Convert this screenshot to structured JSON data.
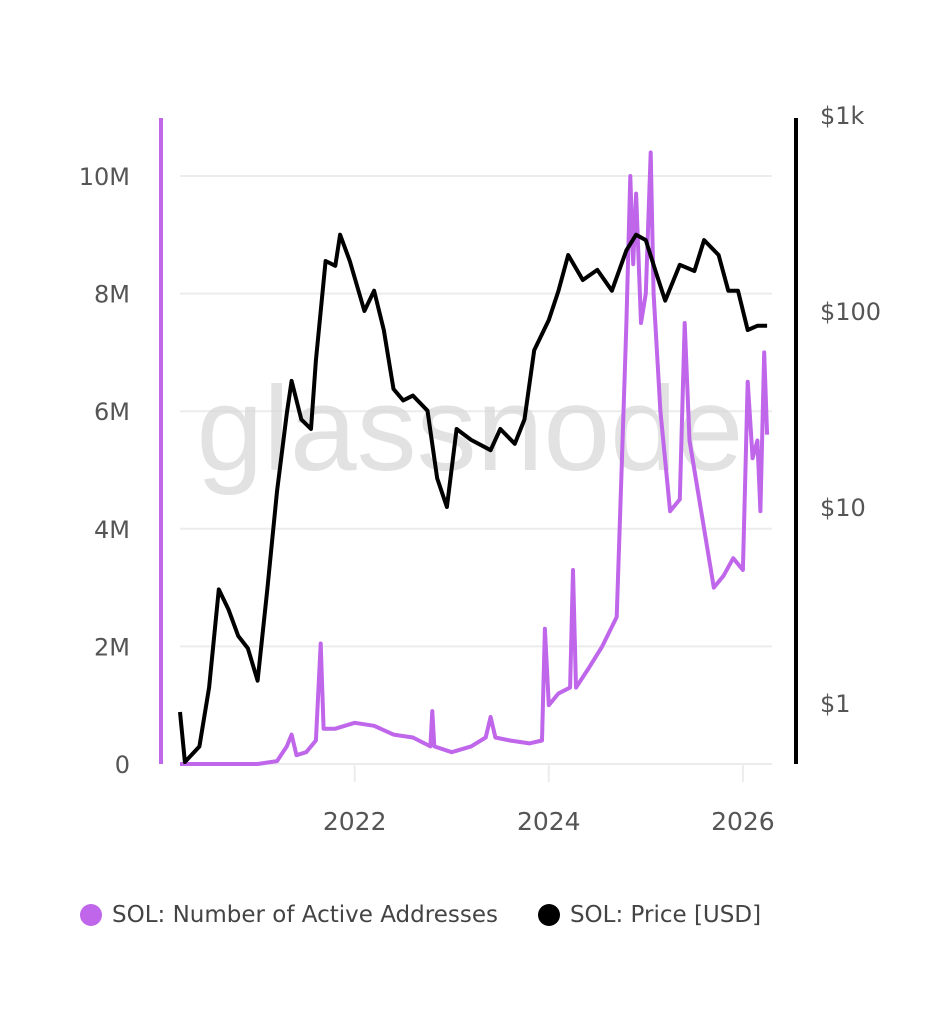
{
  "watermark": "glassnode",
  "colors": {
    "active_addresses": "#bf66ea",
    "price": "#000000",
    "grid": "#ececec",
    "tick_text": "#555555"
  },
  "chart_data": {
    "type": "line",
    "title": "",
    "x_axis": {
      "type": "time",
      "ticks": [
        "2022",
        "2024",
        "2026"
      ],
      "range": [
        2020.2,
        2026.3
      ]
    },
    "y_left": {
      "scale": "linear",
      "range": [
        0,
        11000000
      ],
      "ticks": [
        "0",
        "2M",
        "4M",
        "6M",
        "8M",
        "10M"
      ],
      "tick_values": [
        0,
        2000000,
        4000000,
        6000000,
        8000000,
        10000000
      ]
    },
    "y_right": {
      "scale": "log",
      "range": [
        0.5,
        1000
      ],
      "ticks": [
        "$1",
        "$10",
        "$100",
        "$1k"
      ],
      "tick_values": [
        1,
        10,
        100,
        1000
      ]
    },
    "grid": true,
    "legend_position": "bottom",
    "series": [
      {
        "name": "SOL: Number of Active Addresses",
        "axis": "left",
        "color": "#bf66ea",
        "points": [
          [
            2020.2,
            0
          ],
          [
            2020.6,
            0
          ],
          [
            2021.0,
            0
          ],
          [
            2021.2,
            50000
          ],
          [
            2021.3,
            300000
          ],
          [
            2021.35,
            500000
          ],
          [
            2021.4,
            150000
          ],
          [
            2021.5,
            200000
          ],
          [
            2021.6,
            400000
          ],
          [
            2021.65,
            2050000
          ],
          [
            2021.68,
            600000
          ],
          [
            2021.8,
            600000
          ],
          [
            2022.0,
            700000
          ],
          [
            2022.2,
            650000
          ],
          [
            2022.4,
            500000
          ],
          [
            2022.6,
            450000
          ],
          [
            2022.78,
            300000
          ],
          [
            2022.8,
            900000
          ],
          [
            2022.82,
            300000
          ],
          [
            2023.0,
            200000
          ],
          [
            2023.2,
            300000
          ],
          [
            2023.35,
            450000
          ],
          [
            2023.4,
            800000
          ],
          [
            2023.45,
            450000
          ],
          [
            2023.6,
            400000
          ],
          [
            2023.8,
            350000
          ],
          [
            2023.93,
            400000
          ],
          [
            2023.96,
            2300000
          ],
          [
            2024.0,
            1000000
          ],
          [
            2024.1,
            1200000
          ],
          [
            2024.22,
            1300000
          ],
          [
            2024.25,
            3300000
          ],
          [
            2024.28,
            1300000
          ],
          [
            2024.4,
            1600000
          ],
          [
            2024.55,
            2000000
          ],
          [
            2024.7,
            2500000
          ],
          [
            2024.75,
            5000000
          ],
          [
            2024.8,
            7500000
          ],
          [
            2024.84,
            10000000
          ],
          [
            2024.87,
            8500000
          ],
          [
            2024.9,
            9700000
          ],
          [
            2024.95,
            7500000
          ],
          [
            2025.0,
            8000000
          ],
          [
            2025.05,
            10400000
          ],
          [
            2025.08,
            8000000
          ],
          [
            2025.15,
            6000000
          ],
          [
            2025.25,
            4300000
          ],
          [
            2025.35,
            4500000
          ],
          [
            2025.4,
            7500000
          ],
          [
            2025.45,
            5500000
          ],
          [
            2025.5,
            5000000
          ],
          [
            2025.6,
            4000000
          ],
          [
            2025.7,
            3000000
          ],
          [
            2025.8,
            3200000
          ],
          [
            2025.9,
            3500000
          ],
          [
            2026.0,
            3300000
          ],
          [
            2026.05,
            6500000
          ],
          [
            2026.1,
            5200000
          ],
          [
            2026.15,
            5500000
          ],
          [
            2026.18,
            4300000
          ],
          [
            2026.22,
            7000000
          ],
          [
            2026.25,
            5600000
          ]
        ]
      },
      {
        "name": "SOL: Price [USD]",
        "axis": "right",
        "color": "#000000",
        "points": [
          [
            2020.2,
            0.9
          ],
          [
            2020.25,
            0.5
          ],
          [
            2020.4,
            0.6
          ],
          [
            2020.5,
            1.2
          ],
          [
            2020.6,
            3.8
          ],
          [
            2020.7,
            3.0
          ],
          [
            2020.8,
            2.2
          ],
          [
            2020.9,
            1.9
          ],
          [
            2021.0,
            1.3
          ],
          [
            2021.1,
            3.8
          ],
          [
            2021.2,
            12
          ],
          [
            2021.3,
            30
          ],
          [
            2021.35,
            44
          ],
          [
            2021.45,
            28
          ],
          [
            2021.55,
            25
          ],
          [
            2021.6,
            56
          ],
          [
            2021.7,
            180
          ],
          [
            2021.8,
            170
          ],
          [
            2021.85,
            245
          ],
          [
            2021.95,
            180
          ],
          [
            2022.1,
            100
          ],
          [
            2022.2,
            127
          ],
          [
            2022.3,
            80
          ],
          [
            2022.4,
            40
          ],
          [
            2022.5,
            35
          ],
          [
            2022.6,
            37
          ],
          [
            2022.75,
            31
          ],
          [
            2022.85,
            14
          ],
          [
            2022.95,
            10
          ],
          [
            2023.05,
            25
          ],
          [
            2023.2,
            22
          ],
          [
            2023.4,
            19.5
          ],
          [
            2023.5,
            25
          ],
          [
            2023.65,
            21
          ],
          [
            2023.75,
            28
          ],
          [
            2023.85,
            63
          ],
          [
            2024.0,
            90
          ],
          [
            2024.1,
            127
          ],
          [
            2024.2,
            193
          ],
          [
            2024.35,
            144
          ],
          [
            2024.5,
            162
          ],
          [
            2024.65,
            127
          ],
          [
            2024.8,
            204
          ],
          [
            2024.9,
            245
          ],
          [
            2025.0,
            230
          ],
          [
            2025.1,
            160
          ],
          [
            2025.2,
            113
          ],
          [
            2025.35,
            172
          ],
          [
            2025.5,
            160
          ],
          [
            2025.6,
            230
          ],
          [
            2025.75,
            193
          ],
          [
            2025.85,
            127
          ],
          [
            2025.95,
            127
          ],
          [
            2026.05,
            80
          ],
          [
            2026.15,
            84
          ],
          [
            2026.25,
            84
          ]
        ]
      }
    ]
  },
  "legend": [
    {
      "label": "SOL: Number of Active Addresses",
      "color": "#bf66ea"
    },
    {
      "label": "SOL: Price [USD]",
      "color": "#000000"
    }
  ]
}
